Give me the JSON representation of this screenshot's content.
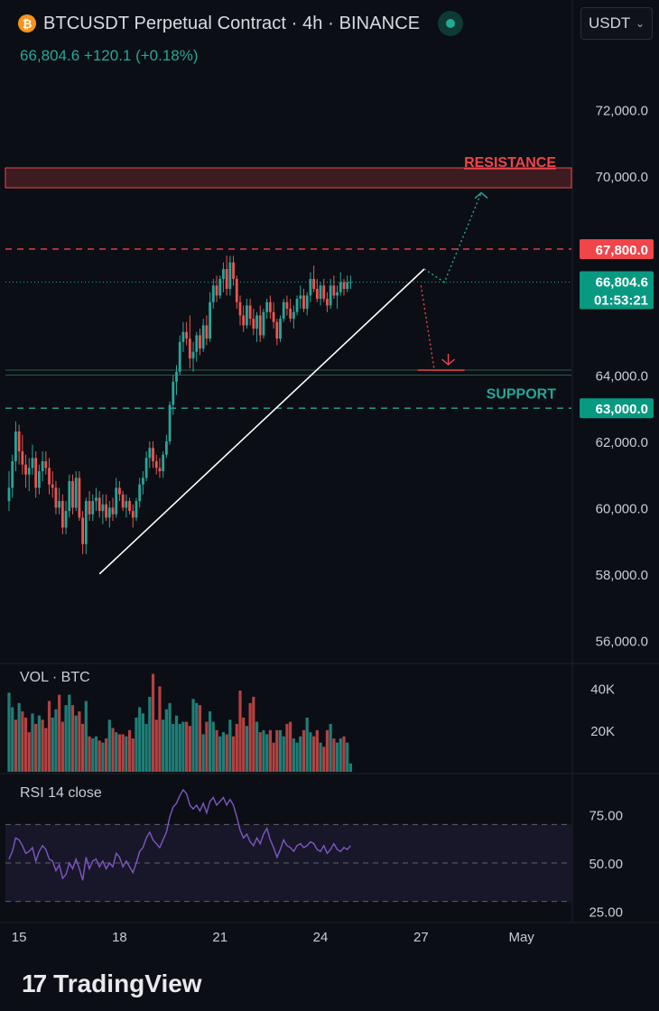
{
  "header": {
    "coin_icon": "bitcoin-icon",
    "coin_symbol": "₿",
    "title": "BTCUSDT Perpetual Contract · 4h · BINANCE",
    "quote": "66,804.6 +120.1 (+0.18%)",
    "currency_select": "USDT",
    "live_indicator_icon": "live-status-icon"
  },
  "colors": {
    "background": "#0b0e14",
    "up": "#26a69a",
    "down": "#ef5350",
    "resistance": "#f0454a",
    "support": "#26a69a",
    "rsi_line": "#7e57c2",
    "trendline": "#ffffff"
  },
  "chart_data": [
    {
      "type": "candlestick",
      "title": "BTCUSDT Perpetual Contract · 4h · BINANCE",
      "price_axis": {
        "ticks": [
          "72,000.0",
          "70,000.0",
          "64,000.0",
          "62,000.0",
          "60,000.0",
          "58,000.0",
          "56,000.0"
        ],
        "range": [
          55300,
          73000
        ]
      },
      "time_axis": {
        "ticks": [
          "15",
          "18",
          "21",
          "24",
          "27",
          "May"
        ],
        "tick_bars": [
          3,
          33,
          63,
          93,
          123,
          153
        ],
        "bars_total": 157
      },
      "candles_ohlc": [
        [
          60200,
          61100,
          59900,
          60600
        ],
        [
          60600,
          61600,
          60300,
          61400
        ],
        [
          61400,
          62600,
          61100,
          62300
        ],
        [
          62300,
          62500,
          61300,
          61700
        ],
        [
          61700,
          62200,
          61000,
          61300
        ],
        [
          61300,
          61600,
          60600,
          61000
        ],
        [
          61000,
          61500,
          60500,
          61200
        ],
        [
          61200,
          61900,
          61000,
          61500
        ],
        [
          61500,
          61700,
          60300,
          60600
        ],
        [
          60600,
          61300,
          60400,
          61100
        ],
        [
          61100,
          61700,
          60800,
          61400
        ],
        [
          61400,
          61700,
          61000,
          61200
        ],
        [
          61200,
          61500,
          60400,
          60700
        ],
        [
          60700,
          61100,
          60300,
          60600
        ],
        [
          60600,
          60800,
          59800,
          60000
        ],
        [
          60000,
          60600,
          59800,
          60200
        ],
        [
          60200,
          60400,
          59200,
          59400
        ],
        [
          59400,
          60200,
          59200,
          59900
        ],
        [
          59900,
          61000,
          59700,
          60800
        ],
        [
          60800,
          61000,
          59800,
          60000
        ],
        [
          60000,
          61100,
          59900,
          60900
        ],
        [
          60900,
          61100,
          59600,
          59700
        ],
        [
          59700,
          59900,
          58600,
          58900
        ],
        [
          58900,
          60300,
          58600,
          60200
        ],
        [
          60200,
          60500,
          59600,
          59800
        ],
        [
          59800,
          60400,
          59600,
          60200
        ],
        [
          60200,
          60600,
          59900,
          60300
        ],
        [
          60300,
          60500,
          59700,
          59900
        ],
        [
          59900,
          60400,
          59500,
          60100
        ],
        [
          60100,
          60400,
          59600,
          59700
        ],
        [
          59700,
          60200,
          59400,
          60000
        ],
        [
          60000,
          60300,
          59600,
          59800
        ],
        [
          59800,
          60900,
          59700,
          60600
        ],
        [
          60600,
          60800,
          60200,
          60400
        ],
        [
          60400,
          60500,
          59900,
          60000
        ],
        [
          60000,
          60400,
          59700,
          60200
        ],
        [
          60200,
          60300,
          59800,
          59900
        ],
        [
          59900,
          60100,
          59400,
          59700
        ],
        [
          59700,
          60300,
          59600,
          60200
        ],
        [
          60200,
          60900,
          60000,
          60700
        ],
        [
          60700,
          61100,
          60400,
          60900
        ],
        [
          60900,
          61700,
          60800,
          61500
        ],
        [
          61500,
          62000,
          61200,
          61800
        ],
        [
          61800,
          62000,
          61200,
          61400
        ],
        [
          61400,
          61600,
          61000,
          61200
        ],
        [
          61200,
          61500,
          60900,
          61100
        ],
        [
          61100,
          61700,
          60900,
          61600
        ],
        [
          61600,
          62200,
          61500,
          62000
        ],
        [
          62000,
          63200,
          61900,
          63100
        ],
        [
          63100,
          64000,
          62800,
          63800
        ],
        [
          63800,
          64300,
          63400,
          64100
        ],
        [
          64100,
          65200,
          64000,
          65000
        ],
        [
          65000,
          65600,
          64700,
          65300
        ],
        [
          65300,
          65600,
          64900,
          65100
        ],
        [
          65100,
          65800,
          64200,
          64500
        ],
        [
          64500,
          65000,
          64100,
          64700
        ],
        [
          64700,
          65300,
          64400,
          65200
        ],
        [
          65200,
          65400,
          64600,
          64800
        ],
        [
          64800,
          65700,
          64700,
          65500
        ],
        [
          65500,
          65800,
          64900,
          65100
        ],
        [
          65100,
          66500,
          65000,
          66200
        ],
        [
          66200,
          66900,
          66000,
          66700
        ],
        [
          66700,
          67000,
          66200,
          66400
        ],
        [
          66400,
          67000,
          66300,
          66900
        ],
        [
          66900,
          67400,
          66500,
          67200
        ],
        [
          67200,
          67600,
          66400,
          66600
        ],
        [
          66600,
          67600,
          66400,
          67400
        ],
        [
          67400,
          67600,
          66700,
          66900
        ],
        [
          66900,
          67000,
          66000,
          66200
        ],
        [
          66200,
          66400,
          65500,
          65800
        ],
        [
          65800,
          66100,
          65300,
          65500
        ],
        [
          65500,
          66300,
          65400,
          66100
        ],
        [
          66100,
          66300,
          65500,
          65700
        ],
        [
          65700,
          66000,
          65200,
          65400
        ],
        [
          65400,
          65900,
          65000,
          65800
        ],
        [
          65800,
          66100,
          65000,
          65200
        ],
        [
          65200,
          66000,
          65100,
          65900
        ],
        [
          65900,
          66300,
          65700,
          66200
        ],
        [
          66200,
          66400,
          65700,
          65900
        ],
        [
          65900,
          66200,
          65400,
          65600
        ],
        [
          65600,
          65700,
          64900,
          65100
        ],
        [
          65100,
          65800,
          65000,
          65700
        ],
        [
          65700,
          66300,
          65600,
          66200
        ],
        [
          66200,
          66400,
          65800,
          66000
        ],
        [
          66000,
          66300,
          65600,
          65700
        ],
        [
          65700,
          66100,
          65400,
          65900
        ],
        [
          65900,
          66400,
          65800,
          66300
        ],
        [
          66300,
          66700,
          66000,
          66400
        ],
        [
          66400,
          66600,
          65900,
          66000
        ],
        [
          66000,
          66500,
          65800,
          66400
        ],
        [
          66400,
          67100,
          66200,
          66900
        ],
        [
          66900,
          67300,
          66500,
          66600
        ],
        [
          66600,
          66900,
          66200,
          66300
        ],
        [
          66300,
          66800,
          66100,
          66700
        ],
        [
          66700,
          66900,
          66200,
          66300
        ],
        [
          66300,
          66500,
          65900,
          66100
        ],
        [
          66100,
          66900,
          66000,
          66700
        ],
        [
          66700,
          67000,
          66300,
          66400
        ],
        [
          66400,
          66700,
          66000,
          66500
        ],
        [
          66500,
          67100,
          66400,
          66800
        ],
        [
          66800,
          66900,
          66400,
          66600
        ],
        [
          66600,
          67000,
          66500,
          66800
        ],
        [
          66800,
          67000,
          66600,
          66805
        ]
      ],
      "annotations": {
        "resistance_label": "RESISTANCE",
        "resistance_zone": [
          69650,
          70250
        ],
        "support_label": "SUPPORT",
        "support_zone": [
          64000,
          64150
        ],
        "resistance_level_badge": "67,800.0",
        "resistance_level_price": 67800,
        "support_level_badge": "63,000.0",
        "support_level_price": 63000,
        "current_price_badge": "66,804.6",
        "current_price": 66804.6,
        "countdown_badge": "01:53:21",
        "trendline": {
          "from_bar": 27,
          "from_price": 58000,
          "to_bar": 124,
          "to_price": 67200
        },
        "bullish_path": {
          "from_bar": 124,
          "from_price": 67200,
          "via_bar": 130,
          "via_price": 66800,
          "to_bar": 141,
          "to_price": 69500
        },
        "bearish_path": {
          "from_bar": 123,
          "from_price": 66700,
          "to_bar": 127,
          "to_price": 64150
        },
        "bearish_marker_bars": [
          122,
          136
        ]
      }
    },
    {
      "type": "bar",
      "title": "VOL · BTC",
      "y_ticks": [
        "40K",
        "20K"
      ],
      "ylim": [
        0,
        52000
      ],
      "values": [
        38000,
        31000,
        25000,
        33000,
        29000,
        26000,
        19000,
        28000,
        23000,
        27000,
        25000,
        21000,
        34000,
        26000,
        30000,
        37000,
        24000,
        32000,
        37000,
        32000,
        27000,
        29000,
        23000,
        34000,
        17000,
        16000,
        17000,
        15000,
        14000,
        16000,
        25000,
        21000,
        19000,
        18000,
        18000,
        17000,
        20000,
        16000,
        26000,
        31000,
        28000,
        23000,
        36000,
        47000,
        25000,
        41000,
        25000,
        30000,
        33000,
        23000,
        27000,
        23000,
        24000,
        24000,
        22000,
        35000,
        33000,
        32000,
        18000,
        24000,
        29000,
        24000,
        20000,
        17000,
        19000,
        18000,
        25000,
        17000,
        23000,
        39000,
        26000,
        22000,
        33000,
        36000,
        24000,
        19000,
        20000,
        18000,
        20000,
        14000,
        20000,
        20000,
        17000,
        23000,
        24000,
        16000,
        14000,
        17000,
        20000,
        26000,
        19000,
        17000,
        20000,
        14000,
        12000,
        20000,
        23000,
        16000,
        14000,
        16000,
        17000,
        14000,
        4000
      ],
      "up_flags": [
        1,
        1,
        0,
        1,
        0,
        0,
        0,
        1,
        0,
        1,
        0,
        0,
        0,
        1,
        1,
        0,
        0,
        1,
        1,
        0,
        1,
        0,
        0,
        1,
        0,
        1,
        1,
        0,
        1,
        0,
        1,
        0,
        1,
        0,
        0,
        1,
        0,
        0,
        1,
        1,
        1,
        1,
        1,
        0,
        0,
        0,
        1,
        1,
        1,
        1,
        1,
        1,
        1,
        0,
        0,
        1,
        1,
        0,
        1,
        0,
        1,
        1,
        0,
        1,
        1,
        0,
        1,
        0,
        0,
        0,
        0,
        1,
        0,
        0,
        1,
        0,
        1,
        1,
        0,
        0,
        0,
        1,
        1,
        0,
        0,
        1,
        1,
        1,
        0,
        1,
        1,
        0,
        0,
        1,
        0,
        0,
        1,
        0,
        1,
        1,
        0,
        1,
        1
      ]
    },
    {
      "type": "line",
      "title": "RSI 14 close",
      "y_ticks": [
        "75.00",
        "50.00",
        "25.00"
      ],
      "ylim": [
        20,
        95
      ],
      "band": [
        30,
        70
      ],
      "values": [
        52,
        56,
        63,
        62,
        59,
        55,
        56,
        58,
        51,
        56,
        59,
        57,
        52,
        51,
        46,
        49,
        42,
        44,
        50,
        47,
        52,
        47,
        41,
        53,
        47,
        51,
        52,
        48,
        51,
        47,
        50,
        48,
        55,
        53,
        48,
        51,
        48,
        45,
        50,
        56,
        58,
        63,
        66,
        62,
        60,
        58,
        62,
        66,
        74,
        79,
        81,
        85,
        88,
        86,
        80,
        78,
        80,
        77,
        81,
        76,
        82,
        84,
        80,
        82,
        84,
        80,
        83,
        80,
        74,
        67,
        63,
        65,
        61,
        59,
        63,
        60,
        65,
        68,
        62,
        58,
        53,
        57,
        62,
        59,
        58,
        56,
        59,
        60,
        58,
        59,
        61,
        60,
        57,
        56,
        59,
        55,
        57,
        60,
        57,
        56,
        58,
        57,
        59
      ]
    }
  ],
  "labels": {
    "volume_pane": "VOL · BTC",
    "rsi_pane": "RSI 14 close",
    "brand_mark": "17",
    "brand_name": "TradingView"
  }
}
